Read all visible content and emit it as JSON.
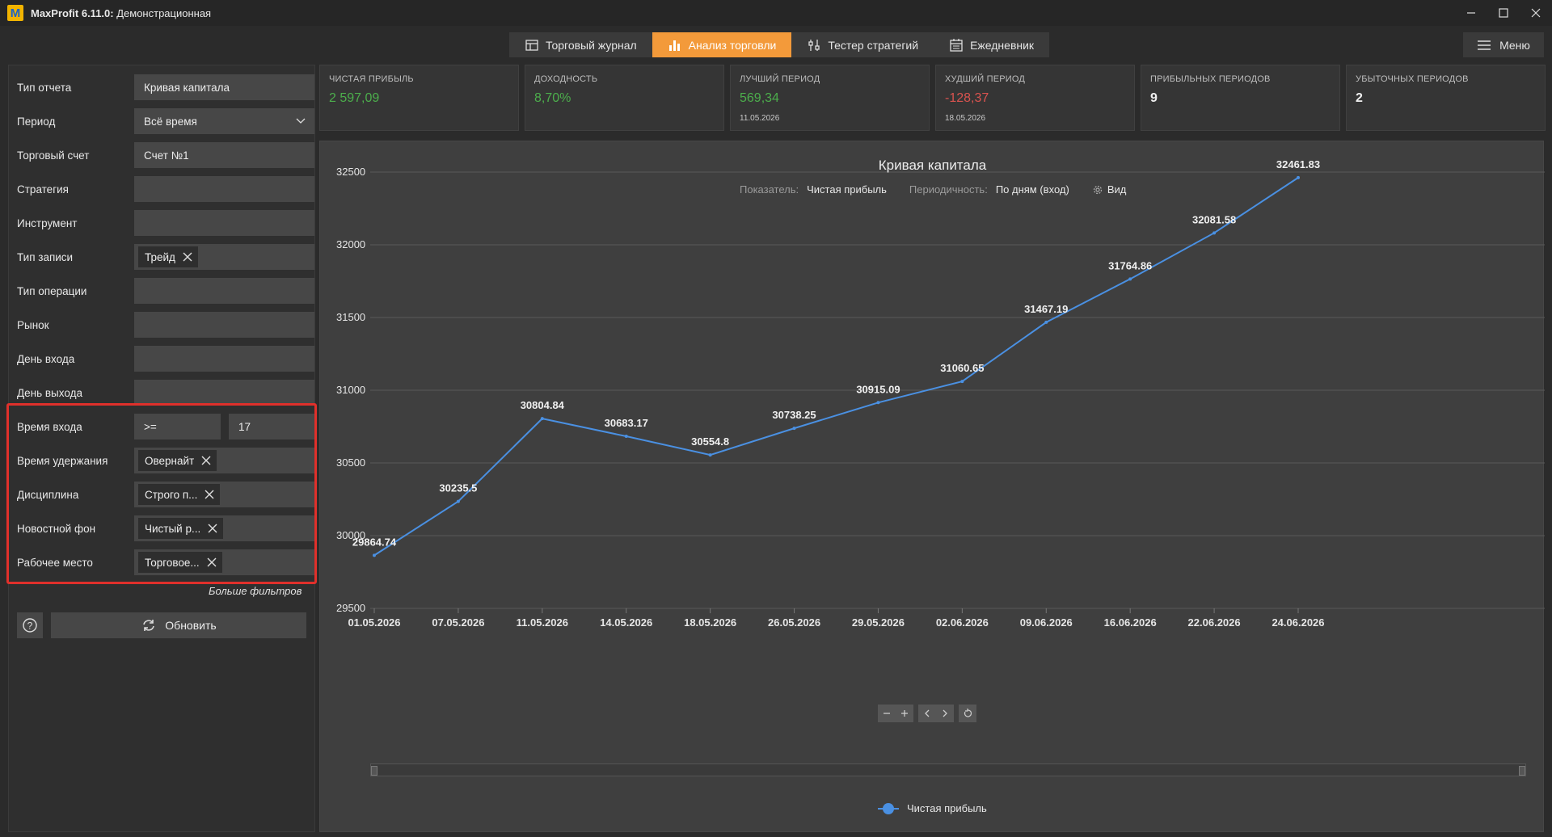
{
  "window": {
    "app_name": "MaxProfit 6.11.0:",
    "mode": "Демонстрационная"
  },
  "tabs": [
    {
      "label": "Торговый журнал",
      "icon": "table-icon"
    },
    {
      "label": "Анализ торговли",
      "icon": "bar-chart-icon",
      "active": true
    },
    {
      "label": "Тестер стратегий",
      "icon": "sliders-icon"
    },
    {
      "label": "Ежедневник",
      "icon": "calendar-icon"
    }
  ],
  "menu_label": "Меню",
  "filters": {
    "report_type": {
      "label": "Тип отчета",
      "value": "Кривая капитала"
    },
    "period": {
      "label": "Период",
      "value": "Всё время"
    },
    "account": {
      "label": "Торговый счет",
      "value": "Счет №1"
    },
    "strategy": {
      "label": "Стратегия",
      "value": ""
    },
    "instrument": {
      "label": "Инструмент",
      "value": ""
    },
    "record_type": {
      "label": "Тип записи",
      "chip": "Трейд"
    },
    "operation_type": {
      "label": "Тип операции",
      "value": ""
    },
    "market": {
      "label": "Рынок",
      "value": ""
    },
    "entry_day": {
      "label": "День входа",
      "value": ""
    },
    "exit_day": {
      "label": "День выхода",
      "value": ""
    },
    "entry_time": {
      "label": "Время входа",
      "operator": ">=",
      "value": "17"
    },
    "holding_time": {
      "label": "Время удержания",
      "chip": "Овернайт"
    },
    "discipline": {
      "label": "Дисциплина",
      "chip": "Строго п..."
    },
    "news": {
      "label": "Новостной фон",
      "chip": "Чистый р..."
    },
    "workplace": {
      "label": "Рабочее место",
      "chip": "Торговое..."
    },
    "more_filters": "Больше фильтров",
    "refresh": "Обновить"
  },
  "kpis": [
    {
      "label": "ЧИСТАЯ ПРИБЫЛЬ",
      "value": "2 597,09",
      "color": "#4cae4c"
    },
    {
      "label": "ДОХОДНОСТЬ",
      "value": "8,70%",
      "color": "#4cae4c"
    },
    {
      "label": "ЛУЧШИЙ ПЕРИОД",
      "value": "569,34",
      "date": "11.05.2026",
      "color": "#4cae4c"
    },
    {
      "label": "ХУДШИЙ ПЕРИОД",
      "value": "-128,37",
      "date": "18.05.2026",
      "color": "#d9534f"
    },
    {
      "label": "ПРИБЫЛЬНЫХ ПЕРИОДОВ",
      "value": "9"
    },
    {
      "label": "УБЫТОЧНЫХ ПЕРИОДОВ",
      "value": "2"
    }
  ],
  "chart_header": {
    "title": "Кривая капитала",
    "indicator_label": "Показатель:",
    "indicator_value": "Чистая прибыль",
    "periodicity_label": "Периодичность:",
    "periodicity_value": "По дням (вход)",
    "view_label": "Вид"
  },
  "chart_data": {
    "type": "line",
    "title": "Кривая капитала",
    "x": [
      "01.05.2026",
      "07.05.2026",
      "11.05.2026",
      "14.05.2026",
      "18.05.2026",
      "26.05.2026",
      "29.05.2026",
      "02.06.2026",
      "09.06.2026",
      "16.06.2026",
      "22.06.2026",
      "24.06.2026"
    ],
    "series": [
      {
        "name": "Чистая прибыль",
        "values": [
          29864.74,
          30235.5,
          30804.84,
          30683.17,
          30554.8,
          30738.25,
          30915.09,
          31060.65,
          31467.19,
          31764.86,
          32081.58,
          32461.83
        ]
      }
    ],
    "yticks": [
      29500,
      30000,
      30500,
      31000,
      31500,
      32000,
      32500
    ],
    "ylim": [
      29500,
      32500
    ],
    "grid": true,
    "legend": "bottom-center",
    "line_color": "#4a90e2"
  }
}
